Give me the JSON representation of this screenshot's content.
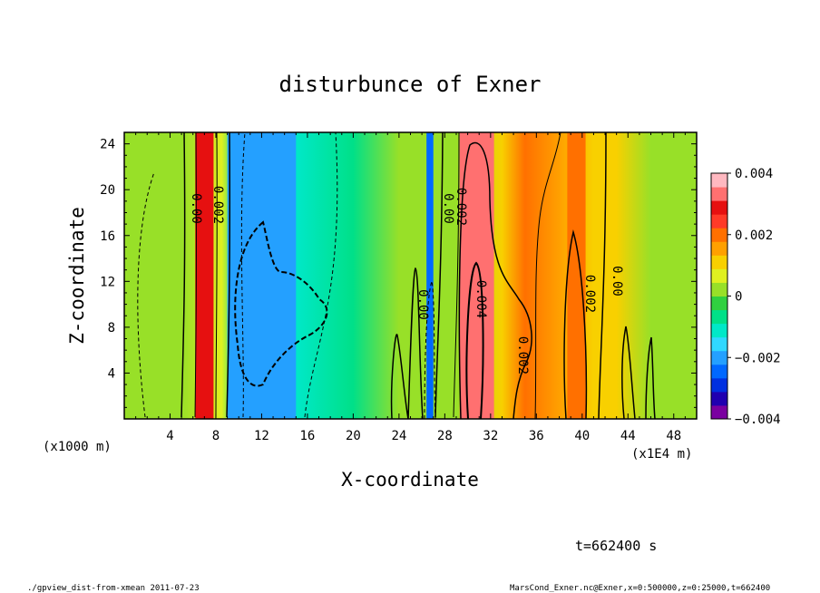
{
  "chart_data": {
    "type": "heatmap",
    "title": "disturbunce of Exner",
    "xlabel": "X-coordinate",
    "ylabel": "Z-coordinate",
    "x_unit_note": "(x1E4 m)",
    "y_unit_note": "(x1000 m)",
    "x_range": [
      0,
      50
    ],
    "y_range": [
      0,
      25
    ],
    "x_ticks": [
      4,
      8,
      12,
      16,
      20,
      24,
      28,
      32,
      36,
      40,
      44,
      48
    ],
    "y_ticks": [
      4,
      8,
      12,
      16,
      20,
      24
    ],
    "colorbar": {
      "min": -0.004,
      "max": 0.004,
      "levels": [
        "#7a00a0",
        "#2000b0",
        "#0030e0",
        "#0068ff",
        "#24a0ff",
        "#30d8ff",
        "#00e8c8",
        "#00e088",
        "#30d040",
        "#98e028",
        "#e0f020",
        "#f8d000",
        "#ffa000",
        "#ff7000",
        "#ff3a28",
        "#e61010",
        "#ff7070",
        "#ffb8c0"
      ],
      "tick_labels": [
        "0.004",
        "0.002",
        "0",
        "−0.002",
        "−0.004"
      ]
    },
    "features": [
      {
        "x": 7.0,
        "width": 1.6,
        "value": 0.003
      },
      {
        "x": 12.0,
        "width": 6.0,
        "value": -0.0018
      },
      {
        "x": 26.7,
        "width": 0.6,
        "value": -0.0024
      },
      {
        "x": 30.8,
        "width": 3.0,
        "value": 0.0034
      },
      {
        "x": 39.5,
        "width": 1.6,
        "value": 0.0022
      }
    ],
    "contour_labels": [
      "0.00",
      "0.002",
      "0.00",
      "0.002",
      "0.00",
      "0.004",
      "0.002",
      "0.002",
      "0.00"
    ],
    "time_label": "t=662400 s"
  },
  "footer": {
    "left": "./gpview_dist-from-xmean  2011-07-23",
    "right": "MarsCond_Exner.nc@Exner,x=0:500000,z=0:25000,t=662400"
  }
}
